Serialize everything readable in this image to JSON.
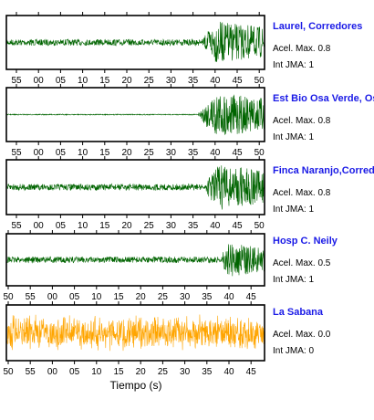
{
  "chart_data": {
    "type": "line",
    "xlabel": "Tiempo (s)",
    "panels": [
      {
        "station": "Laurel, Corredores",
        "acel_label": "Acel. Max. 0.8",
        "jma_label": "Int JMA: 1",
        "color": "#006400",
        "ticks": [
          "55",
          "00",
          "05",
          "10",
          "15",
          "20",
          "25",
          "30",
          "35",
          "40",
          "45",
          "50"
        ],
        "onset_fraction": 0.75,
        "amplitude_level": 0.9
      },
      {
        "station": "Est Bio Osa Verde, Osa",
        "acel_label": "Acel. Max. 0.8",
        "jma_label": "Int JMA: 1",
        "color": "#006400",
        "ticks": [
          "55",
          "00",
          "05",
          "10",
          "15",
          "20",
          "25",
          "30",
          "35",
          "40",
          "45",
          "50"
        ],
        "onset_fraction": 0.74,
        "amplitude_level": 0.95
      },
      {
        "station": "Finca Naranjo,Corredores",
        "acel_label": "Acel. Max. 0.8",
        "jma_label": "Int JMA: 1",
        "color": "#006400",
        "ticks": [
          "55",
          "00",
          "05",
          "10",
          "15",
          "20",
          "25",
          "30",
          "35",
          "40",
          "45",
          "50"
        ],
        "onset_fraction": 0.76,
        "amplitude_level": 0.95
      },
      {
        "station": "Hosp C. Neily",
        "acel_label": "Acel. Max. 0.5",
        "jma_label": "Int JMA: 1",
        "color": "#006400",
        "ticks": [
          "50",
          "55",
          "00",
          "05",
          "10",
          "15",
          "20",
          "25",
          "30",
          "35",
          "40",
          "45"
        ],
        "onset_fraction": 0.82,
        "amplitude_level": 0.75
      },
      {
        "station": "La Sabana",
        "acel_label": "Acel. Max. 0.0",
        "jma_label": "Int JMA: 0",
        "color": "#ffa500",
        "ticks": [
          "50",
          "55",
          "00",
          "05",
          "10",
          "15",
          "20",
          "25",
          "30",
          "35",
          "40",
          "45"
        ],
        "onset_fraction": 0.0,
        "amplitude_level": 0.7
      }
    ]
  }
}
